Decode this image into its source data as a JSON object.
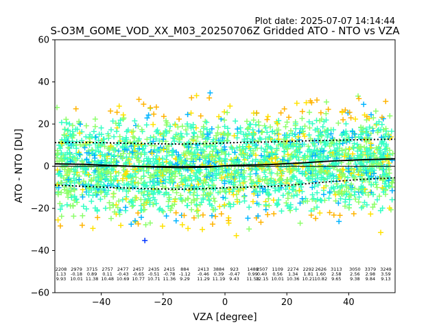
{
  "plot_date": "Plot date: 2025-07-07 14:14:44",
  "chart_data": {
    "type": "scatter",
    "title": "S-O3M_GOME_VOD_XX_M03_20250706Z Gridded ATO - NTO vs VZA",
    "xlabel": "VZA [degree]",
    "ylabel": "ATO - NTO [DU]",
    "xlim": [
      -55,
      55
    ],
    "ylim": [
      -60,
      60
    ],
    "xticks": [
      -40,
      -20,
      0,
      20,
      40
    ],
    "yticks": [
      -60,
      -40,
      -20,
      0,
      20,
      40,
      60
    ],
    "grid": false,
    "zero_line": 0,
    "marker": "+",
    "colormap": [
      "#00007f",
      "#0033ff",
      "#00b4ff",
      "#33ffc4",
      "#8cff6a",
      "#ffe200",
      "#ffb300"
    ],
    "mean_line": {
      "x": [
        -55,
        -45,
        -35,
        -25,
        -15,
        -5,
        0,
        5,
        15,
        25,
        35,
        45,
        55
      ],
      "y": [
        1.1,
        0.9,
        0.2,
        -0.3,
        -0.6,
        -0.4,
        0.2,
        0.5,
        0.8,
        1.6,
        2.5,
        3.1,
        3.5
      ]
    },
    "std_upper_line": {
      "x": [
        -55,
        -45,
        -35,
        -25,
        -15,
        -5,
        0,
        5,
        15,
        25,
        35,
        45,
        55
      ],
      "y": [
        11.2,
        11.3,
        11.0,
        10.7,
        10.5,
        10.8,
        11.0,
        11.3,
        11.5,
        12.0,
        12.3,
        12.6,
        12.8
      ]
    },
    "std_lower_line": {
      "x": [
        -55,
        -45,
        -35,
        -25,
        -15,
        -5,
        0,
        5,
        15,
        25,
        35,
        45,
        55
      ],
      "y": [
        -9.0,
        -9.6,
        -10.2,
        -10.7,
        -10.9,
        -10.6,
        -10.2,
        -10.0,
        -9.6,
        -8.5,
        -7.2,
        -6.2,
        -5.5
      ]
    },
    "bin_stats": [
      {
        "x": -53,
        "count": "2208",
        "mean": "1.13",
        "std": "9.93"
      },
      {
        "x": -48,
        "count": "2979",
        "mean": "-0.18",
        "std": "10.01"
      },
      {
        "x": -43,
        "count": "3715",
        "mean": "0.89",
        "std": "11.38"
      },
      {
        "x": -38,
        "count": "2757",
        "mean": "0.11",
        "std": "10.48"
      },
      {
        "x": -33,
        "count": "2477",
        "mean": "-0.43",
        "std": "10.69"
      },
      {
        "x": -28,
        "count": "2457",
        "mean": "-0.65",
        "std": "10.77"
      },
      {
        "x": -23,
        "count": "2435",
        "mean": "-0.51",
        "std": "10.71"
      },
      {
        "x": -18,
        "count": "2415",
        "mean": "-0.78",
        "std": "11.36"
      },
      {
        "x": -13,
        "count": "884",
        "mean": "-1.12",
        "std": "9.29"
      },
      {
        "x": -7,
        "count": "2413",
        "mean": "-0.46",
        "std": "11.29"
      },
      {
        "x": -2,
        "count": "3884",
        "mean": "0.39",
        "std": "11.19"
      },
      {
        "x": 3,
        "count": "923",
        "mean": "-0.47",
        "std": "9.43"
      },
      {
        "x": 9,
        "count": "1488",
        "std": "11.58",
        "mean": "0.99"
      },
      {
        "x": 12,
        "count": "2507",
        "mean": "0.40",
        "std": "12.15"
      },
      {
        "x": 17,
        "count": "1109",
        "mean": "0.56",
        "std": "10.01"
      },
      {
        "x": 22,
        "count": "2274",
        "mean": "1.34",
        "std": "10.36"
      },
      {
        "x": 27,
        "count": "2292",
        "mean": "1.81",
        "std": "10.21"
      },
      {
        "x": 31,
        "count": "2626",
        "mean": "1.60",
        "std": "10.82"
      },
      {
        "x": 36,
        "count": "3113",
        "mean": "2.58",
        "std": "9.65"
      },
      {
        "x": 42,
        "count": "3050",
        "mean": "2.56",
        "std": "9.38"
      },
      {
        "x": 47,
        "count": "3379",
        "mean": "2.98",
        "std": "9.84"
      },
      {
        "x": 52,
        "count": "3249",
        "mean": "3.59",
        "std": "9.13"
      }
    ]
  }
}
